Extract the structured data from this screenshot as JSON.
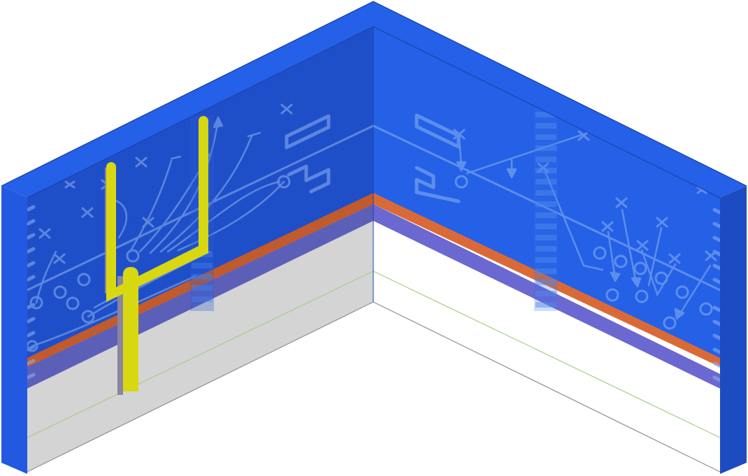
{
  "scene": {
    "subject": "isometric-room-corner",
    "theme": "football-playbook-mural"
  },
  "colors": {
    "wall_left": "#1f4fc8",
    "wall_right": "#2461e6",
    "frame": "#2460e8",
    "frame_dark": "#1c48bd",
    "frame_side": "#1d4bc2",
    "stripe_orange": "#d96a38",
    "stripe_purple": "#6b68d1",
    "chalk": "#8eb4f3",
    "post_yellow": "#d8d812",
    "post_shadow": "#8a84a0",
    "lower_left": "#d4d4d4",
    "lower_right": "#ffffff",
    "accent_line": "#a8cc88",
    "edge_line": "#8f8f8f"
  },
  "icons": [
    "goal-post-icon",
    "play-diagram-icon",
    "yard-number-icon"
  ]
}
